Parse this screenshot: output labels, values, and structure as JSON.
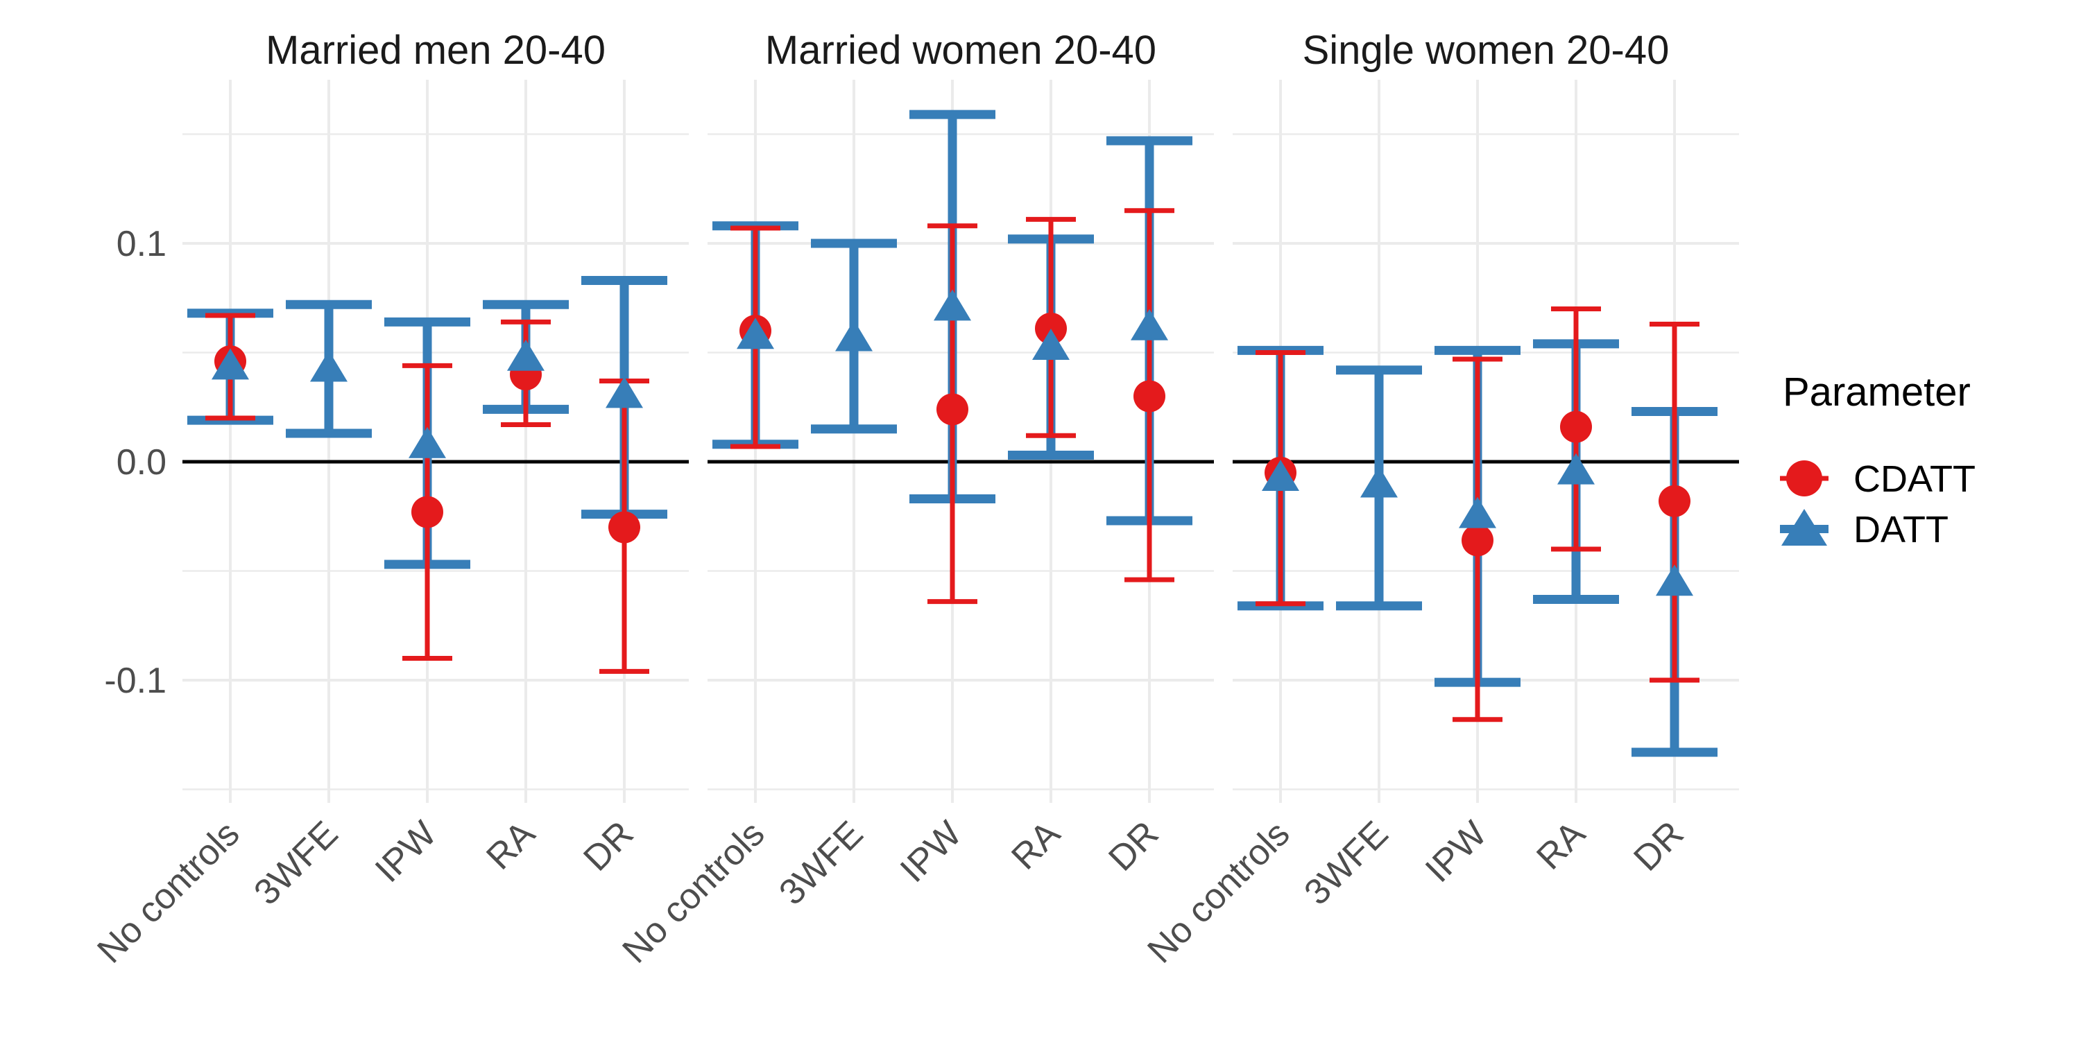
{
  "chart_data": {
    "type": "pointrange",
    "title": "",
    "xlabel": "",
    "ylabel": "",
    "categories": [
      "No controls",
      "3WFE",
      "IPW",
      "RA",
      "DR"
    ],
    "y_axis": {
      "ticks": [
        {
          "label": "0.1",
          "value": 0.1
        },
        {
          "label": "0.0",
          "value": 0.0
        },
        {
          "label": "-0.1",
          "value": -0.1
        }
      ],
      "minor_gridlines": [
        0.15,
        0.05,
        -0.05,
        -0.15
      ],
      "range": [
        -0.157,
        0.175
      ],
      "grid": "on"
    },
    "zero_line": 0.0,
    "legend": {
      "title": "Parameter",
      "position": "right",
      "items": [
        {
          "label": "CDATT",
          "series": "cdatt",
          "marker": "circle",
          "color": "#E41A1C"
        },
        {
          "label": "DATT",
          "series": "datt",
          "marker": "triangle",
          "color": "#377EB8"
        }
      ]
    },
    "facets": [
      {
        "title": "Married men 20-40",
        "points": [
          {
            "category": "No controls",
            "cdatt": {
              "low": 0.02,
              "mid": 0.046,
              "high": 0.067
            },
            "datt": {
              "low": 0.019,
              "mid": 0.044,
              "high": 0.068
            }
          },
          {
            "category": "3WFE",
            "cdatt": null,
            "datt": {
              "low": 0.013,
              "mid": 0.043,
              "high": 0.072
            }
          },
          {
            "category": "IPW",
            "cdatt": {
              "low": -0.09,
              "mid": -0.023,
              "high": 0.044
            },
            "datt": {
              "low": -0.047,
              "mid": 0.008,
              "high": 0.064
            }
          },
          {
            "category": "RA",
            "cdatt": {
              "low": 0.017,
              "mid": 0.04,
              "high": 0.064
            },
            "datt": {
              "low": 0.024,
              "mid": 0.048,
              "high": 0.072
            }
          },
          {
            "category": "DR",
            "cdatt": {
              "low": -0.096,
              "mid": -0.03,
              "high": 0.037
            },
            "datt": {
              "low": -0.024,
              "mid": 0.031,
              "high": 0.083
            }
          }
        ]
      },
      {
        "title": "Married women 20-40",
        "points": [
          {
            "category": "No controls",
            "cdatt": {
              "low": 0.007,
              "mid": 0.06,
              "high": 0.107
            },
            "datt": {
              "low": 0.008,
              "mid": 0.058,
              "high": 0.108
            }
          },
          {
            "category": "3WFE",
            "cdatt": null,
            "datt": {
              "low": 0.015,
              "mid": 0.057,
              "high": 0.1
            }
          },
          {
            "category": "IPW",
            "cdatt": {
              "low": -0.064,
              "mid": 0.024,
              "high": 0.108
            },
            "datt": {
              "low": -0.017,
              "mid": 0.071,
              "high": 0.159
            }
          },
          {
            "category": "RA",
            "cdatt": {
              "low": 0.012,
              "mid": 0.061,
              "high": 0.111
            },
            "datt": {
              "low": 0.003,
              "mid": 0.053,
              "high": 0.102
            }
          },
          {
            "category": "DR",
            "cdatt": {
              "low": -0.054,
              "mid": 0.03,
              "high": 0.115
            },
            "datt": {
              "low": -0.027,
              "mid": 0.062,
              "high": 0.147
            }
          }
        ]
      },
      {
        "title": "Single women 20-40",
        "points": [
          {
            "category": "No controls",
            "cdatt": {
              "low": -0.065,
              "mid": -0.005,
              "high": 0.05
            },
            "datt": {
              "low": -0.066,
              "mid": -0.007,
              "high": 0.051
            }
          },
          {
            "category": "3WFE",
            "cdatt": null,
            "datt": {
              "low": -0.066,
              "mid": -0.01,
              "high": 0.042
            }
          },
          {
            "category": "IPW",
            "cdatt": {
              "low": -0.118,
              "mid": -0.036,
              "high": 0.047
            },
            "datt": {
              "low": -0.101,
              "mid": -0.024,
              "high": 0.051
            }
          },
          {
            "category": "RA",
            "cdatt": {
              "low": -0.04,
              "mid": 0.016,
              "high": 0.07
            },
            "datt": {
              "low": -0.063,
              "mid": -0.004,
              "high": 0.054
            }
          },
          {
            "category": "DR",
            "cdatt": {
              "low": -0.1,
              "mid": -0.018,
              "high": 0.063
            },
            "datt": {
              "low": -0.133,
              "mid": -0.055,
              "high": 0.023
            }
          }
        ]
      }
    ],
    "colors": {
      "cdatt": "#E41A1C",
      "datt": "#377EB8",
      "grid": "#EBEBEB",
      "zero_line": "#000000",
      "axis_text": "#4D4D4D",
      "strip_text": "#1A1A1A",
      "background": "#FFFFFF"
    }
  }
}
